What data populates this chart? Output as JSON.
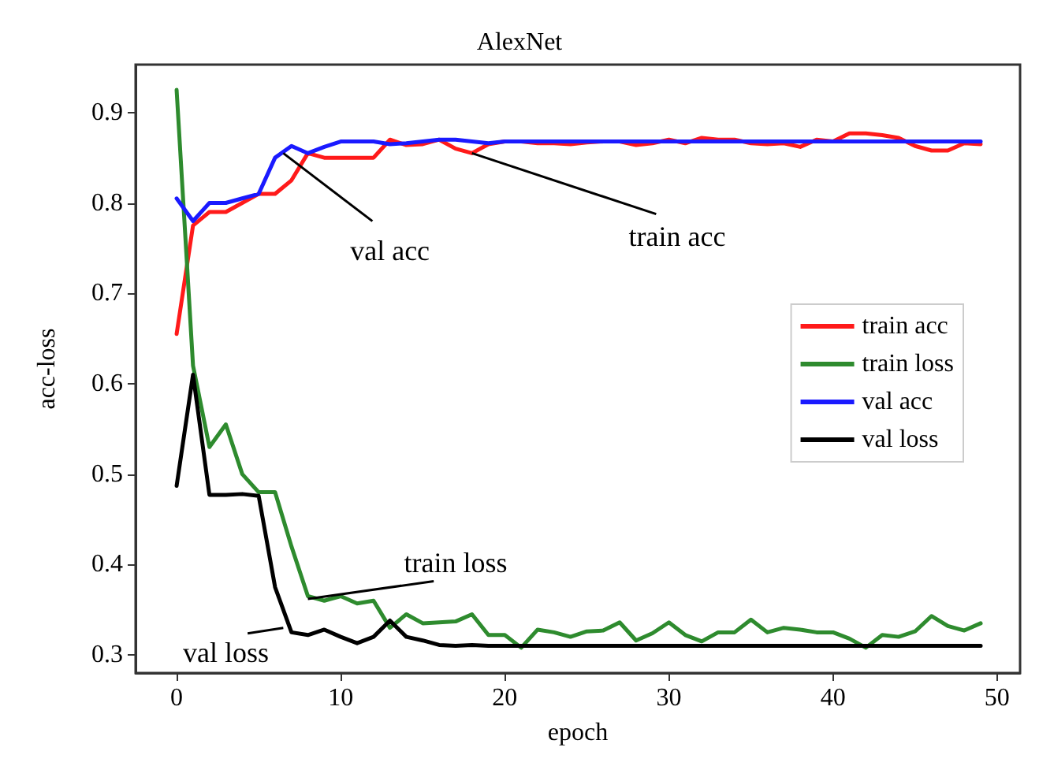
{
  "chart_data": {
    "type": "line",
    "title": "AlexNet",
    "xlabel": "epoch",
    "ylabel": "acc-loss",
    "x": [
      0,
      1,
      2,
      3,
      4,
      5,
      6,
      7,
      8,
      9,
      10,
      11,
      12,
      13,
      14,
      15,
      16,
      17,
      18,
      19,
      20,
      21,
      22,
      23,
      24,
      25,
      26,
      27,
      28,
      29,
      30,
      31,
      32,
      33,
      34,
      35,
      36,
      37,
      38,
      39,
      40,
      41,
      42,
      43,
      44,
      45,
      46,
      47,
      48,
      49
    ],
    "xlim": [
      -2.5,
      51.4
    ],
    "xticks": [
      0,
      10,
      20,
      30,
      40,
      50
    ],
    "ylim": [
      0.28,
      0.953
    ],
    "yticks": [
      0.3,
      0.4,
      0.5,
      0.6,
      0.7,
      0.8,
      0.9
    ],
    "series": [
      {
        "name": "train acc",
        "color": "#ff1a1a",
        "values": [
          0.655,
          0.775,
          0.79,
          0.79,
          0.8,
          0.81,
          0.81,
          0.825,
          0.855,
          0.85,
          0.85,
          0.85,
          0.85,
          0.87,
          0.864,
          0.865,
          0.87,
          0.86,
          0.855,
          0.865,
          0.868,
          0.868,
          0.866,
          0.866,
          0.865,
          0.867,
          0.868,
          0.868,
          0.864,
          0.866,
          0.87,
          0.866,
          0.872,
          0.87,
          0.87,
          0.866,
          0.865,
          0.866,
          0.862,
          0.87,
          0.868,
          0.877,
          0.877,
          0.875,
          0.872,
          0.863,
          0.858,
          0.858,
          0.866,
          0.865
        ]
      },
      {
        "name": "train loss",
        "color": "#2e8b2e",
        "values": [
          0.925,
          0.62,
          0.53,
          0.555,
          0.5,
          0.48,
          0.48,
          0.42,
          0.365,
          0.36,
          0.365,
          0.357,
          0.36,
          0.33,
          0.345,
          0.335,
          0.336,
          0.337,
          0.345,
          0.322,
          0.322,
          0.308,
          0.328,
          0.325,
          0.32,
          0.326,
          0.327,
          0.336,
          0.316,
          0.324,
          0.336,
          0.322,
          0.315,
          0.325,
          0.325,
          0.339,
          0.325,
          0.33,
          0.328,
          0.325,
          0.325,
          0.318,
          0.308,
          0.322,
          0.32,
          0.326,
          0.343,
          0.332,
          0.327,
          0.335
        ]
      },
      {
        "name": "val acc",
        "color": "#1a1aff",
        "values": [
          0.805,
          0.78,
          0.8,
          0.8,
          0.805,
          0.81,
          0.85,
          0.863,
          0.855,
          0.862,
          0.868,
          0.868,
          0.868,
          0.865,
          0.866,
          0.868,
          0.87,
          0.87,
          0.868,
          0.866,
          0.868,
          0.868,
          0.868,
          0.868,
          0.868,
          0.868,
          0.868,
          0.868,
          0.868,
          0.868,
          0.868,
          0.868,
          0.868,
          0.868,
          0.868,
          0.868,
          0.868,
          0.868,
          0.868,
          0.868,
          0.868,
          0.868,
          0.868,
          0.868,
          0.868,
          0.868,
          0.868,
          0.868,
          0.868,
          0.868
        ]
      },
      {
        "name": "val loss",
        "color": "#000000",
        "values": [
          0.487,
          0.61,
          0.477,
          0.477,
          0.478,
          0.476,
          0.375,
          0.325,
          0.322,
          0.328,
          0.32,
          0.313,
          0.32,
          0.338,
          0.32,
          0.316,
          0.311,
          0.31,
          0.311,
          0.31,
          0.31,
          0.31,
          0.31,
          0.31,
          0.31,
          0.31,
          0.31,
          0.31,
          0.31,
          0.31,
          0.31,
          0.31,
          0.31,
          0.31,
          0.31,
          0.31,
          0.31,
          0.31,
          0.31,
          0.31,
          0.31,
          0.31,
          0.31,
          0.31,
          0.31,
          0.31,
          0.31,
          0.31,
          0.31,
          0.31
        ]
      }
    ],
    "annotations": [
      {
        "text": "val acc",
        "x": 6.5,
        "y": 0.855
      },
      {
        "text": "train acc",
        "x": 18,
        "y": 0.855
      },
      {
        "text": "train loss",
        "x": 8,
        "y": 0.362
      },
      {
        "text": "val loss",
        "x": 6.5,
        "y": 0.33
      }
    ],
    "legend": "right",
    "grid": false,
    "marker": "none",
    "line_style": "solid"
  }
}
